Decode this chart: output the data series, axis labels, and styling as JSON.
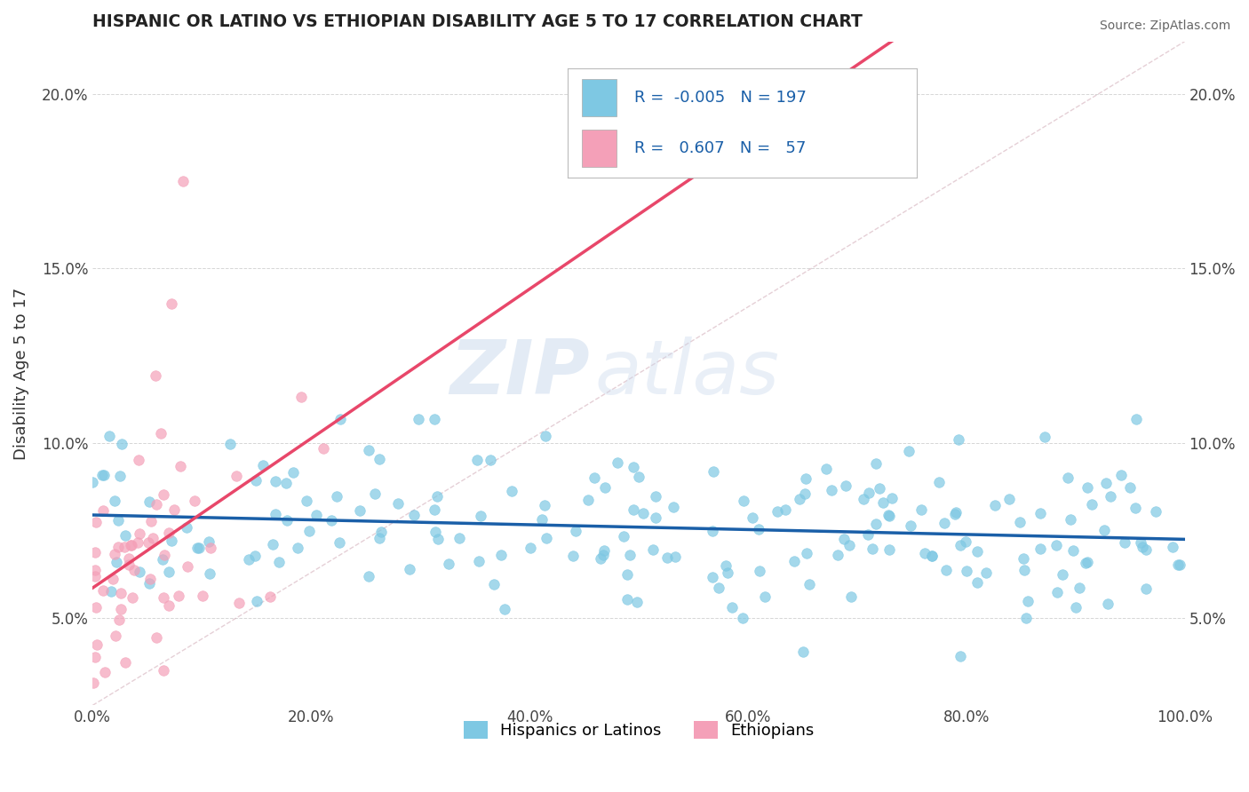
{
  "title": "HISPANIC OR LATINO VS ETHIOPIAN DISABILITY AGE 5 TO 17 CORRELATION CHART",
  "source": "Source: ZipAtlas.com",
  "ylabel": "Disability Age 5 to 17",
  "xlim": [
    0,
    1.0
  ],
  "ylim": [
    0.025,
    0.215
  ],
  "xticks": [
    0.0,
    0.2,
    0.4,
    0.6,
    0.8,
    1.0
  ],
  "xtick_labels": [
    "0.0%",
    "20.0%",
    "40.0%",
    "60.0%",
    "80.0%",
    "100.0%"
  ],
  "yticks": [
    0.05,
    0.1,
    0.15,
    0.2
  ],
  "ytick_labels": [
    "5.0%",
    "10.0%",
    "15.0%",
    "20.0%"
  ],
  "blue_color": "#7ec8e3",
  "pink_color": "#f4a0b8",
  "blue_line_color": "#1a5fa8",
  "pink_line_color": "#e8476a",
  "diag_line_color": "#d4b0bb",
  "R_blue": -0.005,
  "R_pink": 0.607,
  "N_blue": 197,
  "N_pink": 57,
  "watermark_zip": "ZIP",
  "watermark_atlas": "atlas",
  "legend_items": [
    "Hispanics or Latinos",
    "Ethiopians"
  ],
  "bg_color": "#ffffff",
  "grid_color": "#cccccc"
}
